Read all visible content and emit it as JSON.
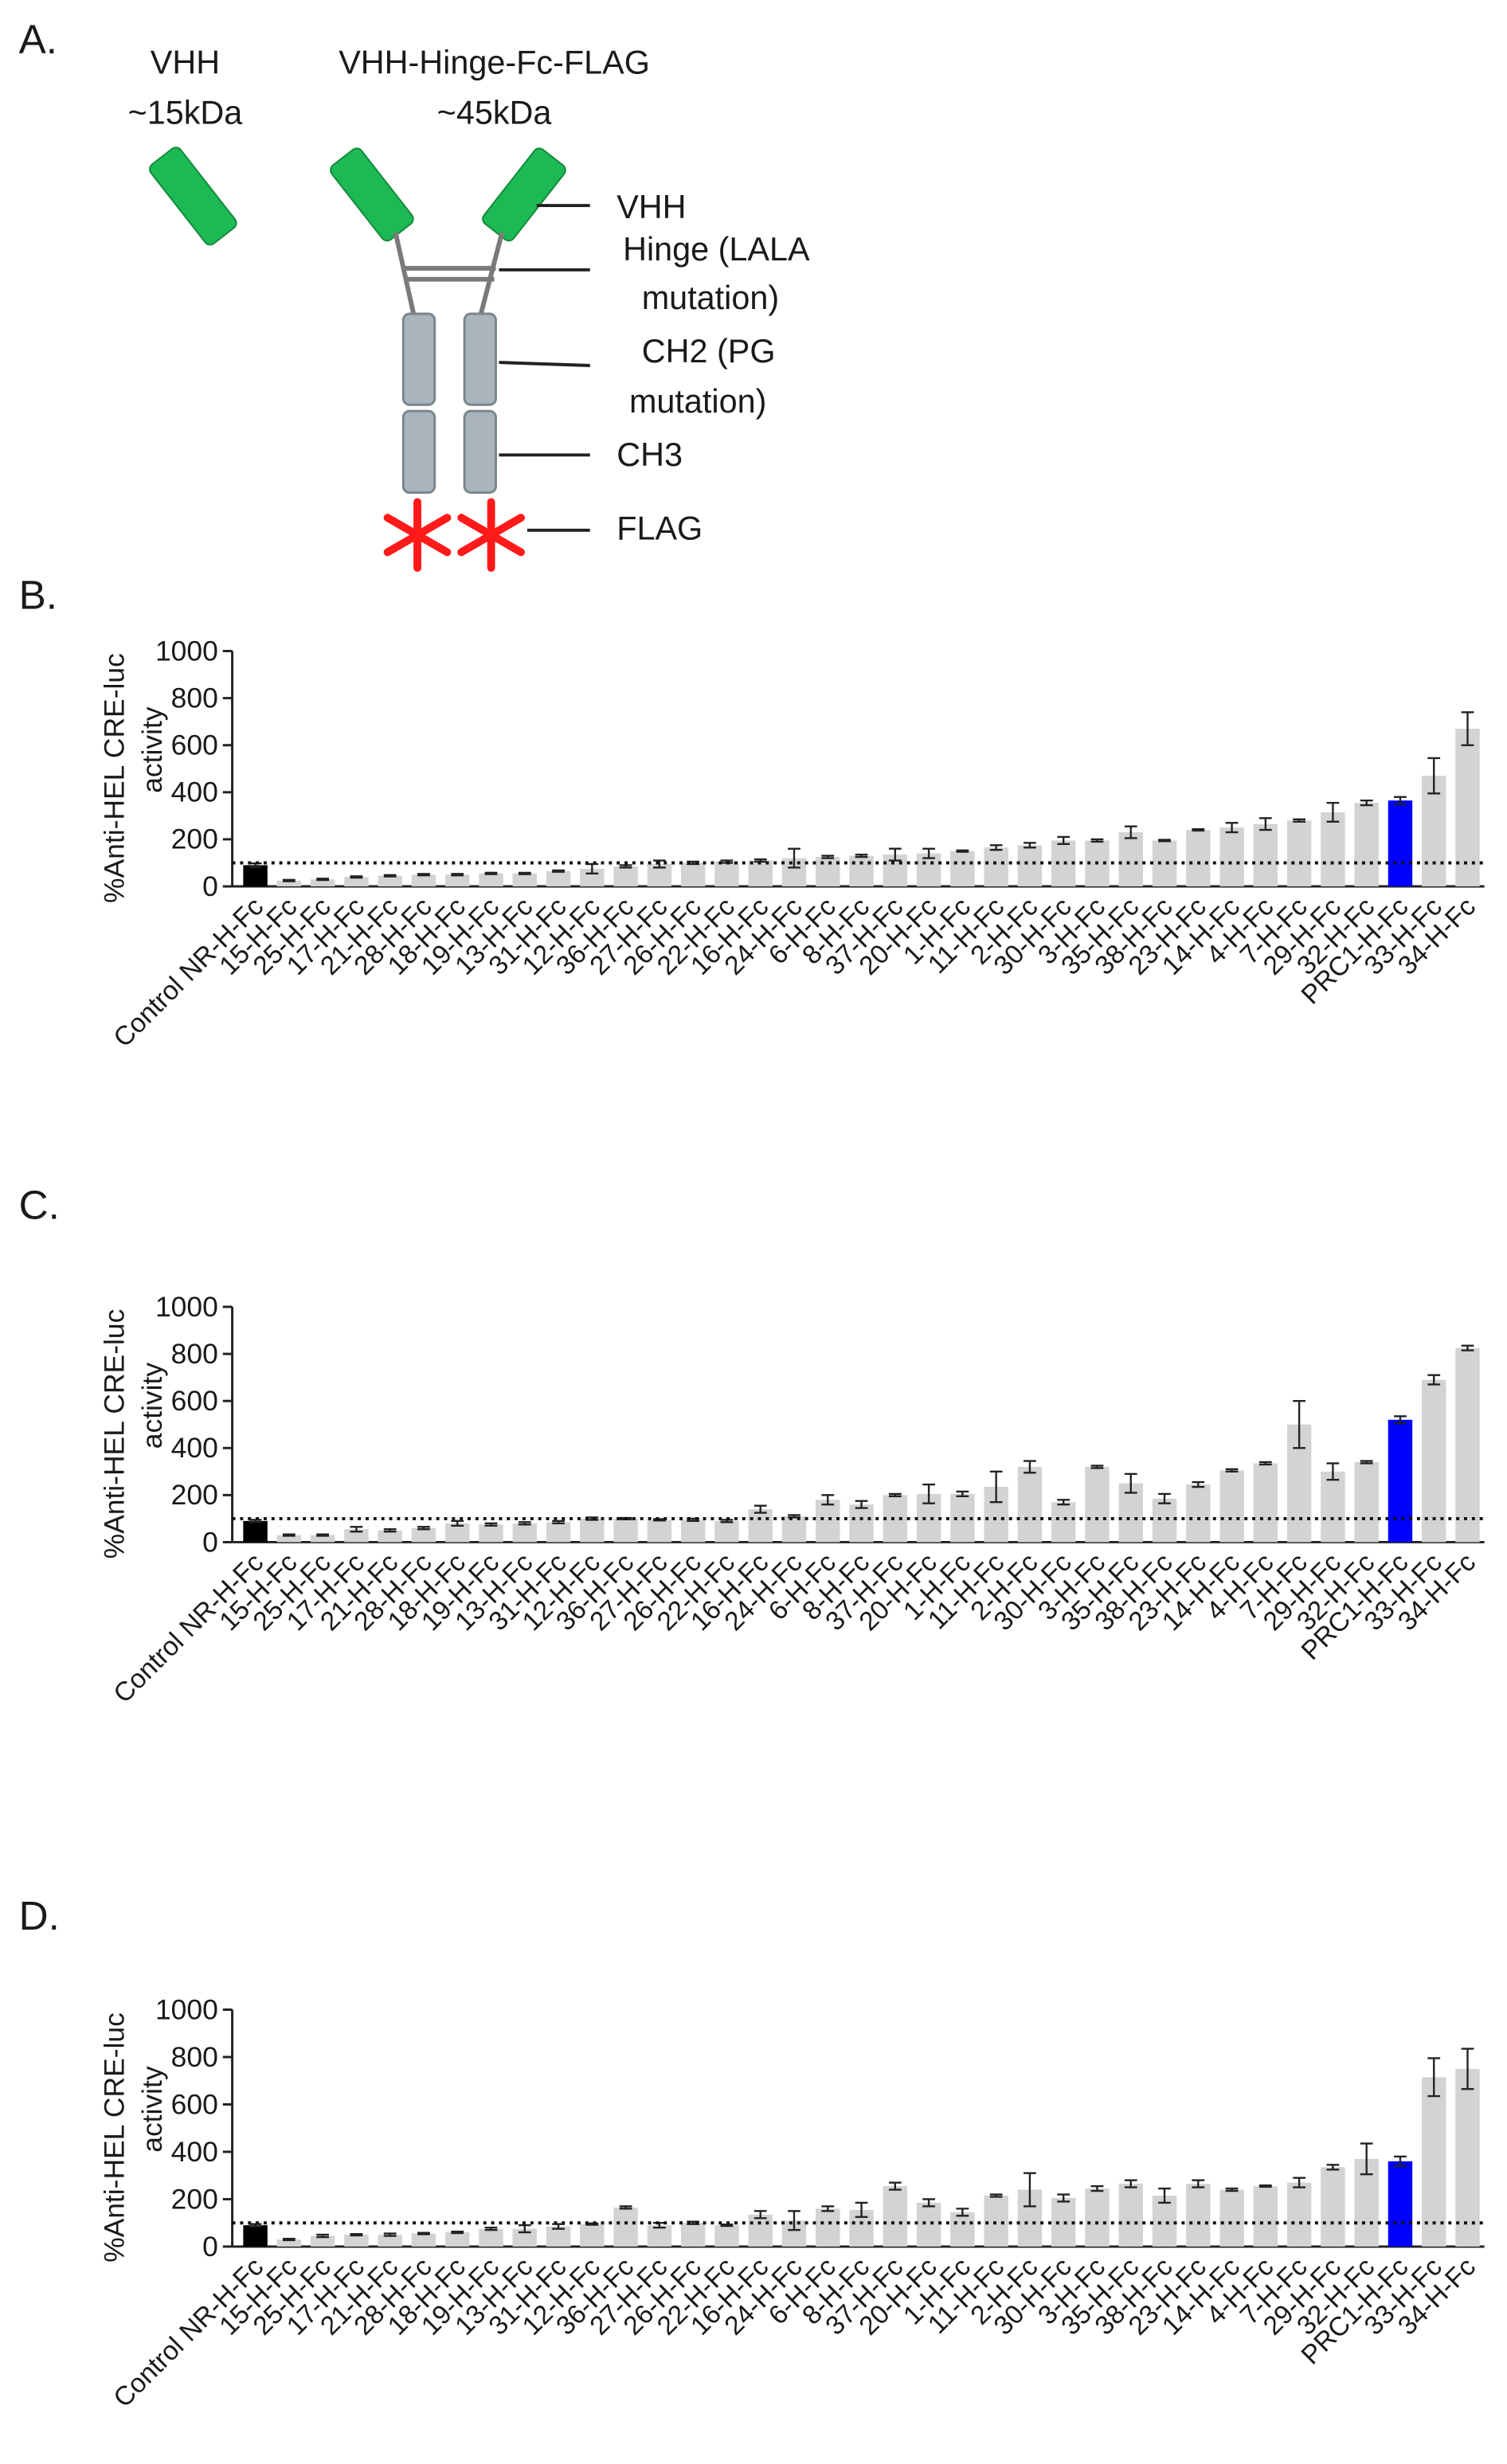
{
  "diagram": {
    "panel": "A.",
    "left_title": [
      "VHH",
      "~15kDa"
    ],
    "right_title": [
      "VHH-Hinge-Fc-FLAG",
      "~45kDa"
    ],
    "labels": {
      "vhh": "VHH",
      "hinge": [
        "Hinge (LALA",
        "mutation)"
      ],
      "ch2": [
        "CH2 (PG",
        "mutation)"
      ],
      "ch3": "CH3",
      "flag": "FLAG"
    }
  },
  "chart_data": [
    {
      "type": "bar",
      "panel": "B.",
      "y_label": [
        "%Anti-HEL CRE-luc",
        "activity"
      ],
      "categories": [
        "Control NR-H-Fc",
        "15-H-Fc",
        "25-H-Fc",
        "17-H-Fc",
        "21-H-Fc",
        "28-H-Fc",
        "18-H-Fc",
        "19-H-Fc",
        "13-H-Fc",
        "31-H-Fc",
        "12-H-Fc",
        "36-H-Fc",
        "27-H-Fc",
        "26-H-Fc",
        "22-H-Fc",
        "16-H-Fc",
        "24-H-Fc",
        "6-H-Fc",
        "8-H-Fc",
        "37-H-Fc",
        "20-H-Fc",
        "1-H-Fc",
        "11-H-Fc",
        "2-H-Fc",
        "30-H-Fc",
        "3-H-Fc",
        "35-H-Fc",
        "38-H-Fc",
        "23-H-Fc",
        "14-H-Fc",
        "4-H-Fc",
        "7-H-Fc",
        "29-H-Fc",
        "32-H-Fc",
        "PRC1-H-Fc",
        "33-H-Fc",
        "34-H-Fc"
      ],
      "values": [
        90,
        25,
        30,
        40,
        45,
        50,
        50,
        55,
        55,
        65,
        75,
        85,
        95,
        100,
        105,
        110,
        120,
        125,
        130,
        135,
        140,
        150,
        165,
        175,
        195,
        195,
        230,
        195,
        240,
        250,
        265,
        280,
        315,
        355,
        365,
        470,
        670
      ],
      "errors": [
        8,
        3,
        3,
        3,
        3,
        3,
        3,
        3,
        3,
        3,
        20,
        5,
        15,
        5,
        5,
        5,
        40,
        5,
        5,
        25,
        20,
        3,
        10,
        10,
        15,
        5,
        25,
        3,
        3,
        20,
        25,
        5,
        40,
        10,
        15,
        75,
        70
      ],
      "colors": [
        "#000000",
        "#d3d3d3",
        "#d3d3d3",
        "#d3d3d3",
        "#d3d3d3",
        "#d3d3d3",
        "#d3d3d3",
        "#d3d3d3",
        "#d3d3d3",
        "#d3d3d3",
        "#d3d3d3",
        "#d3d3d3",
        "#d3d3d3",
        "#d3d3d3",
        "#d3d3d3",
        "#d3d3d3",
        "#d3d3d3",
        "#d3d3d3",
        "#d3d3d3",
        "#d3d3d3",
        "#d3d3d3",
        "#d3d3d3",
        "#d3d3d3",
        "#d3d3d3",
        "#d3d3d3",
        "#d3d3d3",
        "#d3d3d3",
        "#d3d3d3",
        "#d3d3d3",
        "#d3d3d3",
        "#d3d3d3",
        "#d3d3d3",
        "#d3d3d3",
        "#d3d3d3",
        "#0000ff",
        "#d3d3d3",
        "#d3d3d3"
      ],
      "ylim": [
        0,
        1000
      ],
      "yticks": [
        0,
        200,
        400,
        600,
        800,
        1000
      ],
      "reference_line": 100
    },
    {
      "type": "bar",
      "panel": "C.",
      "y_label": [
        "%Anti-HEL CRE-luc",
        "activity"
      ],
      "categories": [
        "Control NR-H-Fc",
        "15-H-Fc",
        "25-H-Fc",
        "17-H-Fc",
        "21-H-Fc",
        "28-H-Fc",
        "18-H-Fc",
        "19-H-Fc",
        "13-H-Fc",
        "31-H-Fc",
        "12-H-Fc",
        "36-H-Fc",
        "27-H-Fc",
        "26-H-Fc",
        "22-H-Fc",
        "16-H-Fc",
        "24-H-Fc",
        "6-H-Fc",
        "8-H-Fc",
        "37-H-Fc",
        "20-H-Fc",
        "1-H-Fc",
        "11-H-Fc",
        "2-H-Fc",
        "30-H-Fc",
        "3-H-Fc",
        "35-H-Fc",
        "38-H-Fc",
        "23-H-Fc",
        "14-H-Fc",
        "4-H-Fc",
        "7-H-Fc",
        "29-H-Fc",
        "32-H-Fc",
        "PRC1-H-Fc",
        "33-H-Fc",
        "34-H-Fc"
      ],
      "values": [
        90,
        30,
        30,
        55,
        50,
        60,
        80,
        75,
        80,
        85,
        100,
        100,
        95,
        95,
        90,
        140,
        110,
        180,
        160,
        200,
        205,
        205,
        235,
        320,
        170,
        320,
        250,
        185,
        245,
        305,
        335,
        500,
        300,
        340,
        520,
        690,
        825
      ],
      "errors": [
        5,
        3,
        3,
        10,
        5,
        5,
        10,
        5,
        5,
        5,
        5,
        3,
        3,
        5,
        5,
        15,
        5,
        20,
        15,
        5,
        40,
        10,
        65,
        25,
        10,
        5,
        40,
        20,
        10,
        5,
        5,
        100,
        35,
        5,
        15,
        20,
        10
      ],
      "colors": [
        "#000000",
        "#d3d3d3",
        "#d3d3d3",
        "#d3d3d3",
        "#d3d3d3",
        "#d3d3d3",
        "#d3d3d3",
        "#d3d3d3",
        "#d3d3d3",
        "#d3d3d3",
        "#d3d3d3",
        "#d3d3d3",
        "#d3d3d3",
        "#d3d3d3",
        "#d3d3d3",
        "#d3d3d3",
        "#d3d3d3",
        "#d3d3d3",
        "#d3d3d3",
        "#d3d3d3",
        "#d3d3d3",
        "#d3d3d3",
        "#d3d3d3",
        "#d3d3d3",
        "#d3d3d3",
        "#d3d3d3",
        "#d3d3d3",
        "#d3d3d3",
        "#d3d3d3",
        "#d3d3d3",
        "#d3d3d3",
        "#d3d3d3",
        "#d3d3d3",
        "#d3d3d3",
        "#0000ff",
        "#d3d3d3",
        "#d3d3d3"
      ],
      "ylim": [
        0,
        1000
      ],
      "yticks": [
        0,
        200,
        400,
        600,
        800,
        1000
      ],
      "reference_line": 100
    },
    {
      "type": "bar",
      "panel": "D.",
      "y_label": [
        "%Anti-HEL CRE-luc",
        "activity"
      ],
      "categories": [
        "Control NR-H-Fc",
        "15-H-Fc",
        "25-H-Fc",
        "17-H-Fc",
        "21-H-Fc",
        "28-H-Fc",
        "18-H-Fc",
        "19-H-Fc",
        "13-H-Fc",
        "31-H-Fc",
        "12-H-Fc",
        "36-H-Fc",
        "27-H-Fc",
        "26-H-Fc",
        "22-H-Fc",
        "16-H-Fc",
        "24-H-Fc",
        "6-H-Fc",
        "8-H-Fc",
        "37-H-Fc",
        "20-H-Fc",
        "1-H-Fc",
        "11-H-Fc",
        "2-H-Fc",
        "30-H-Fc",
        "3-H-Fc",
        "35-H-Fc",
        "38-H-Fc",
        "23-H-Fc",
        "14-H-Fc",
        "4-H-Fc",
        "7-H-Fc",
        "29-H-Fc",
        "32-H-Fc",
        "PRC1-H-Fc",
        "33-H-Fc",
        "34-H-Fc"
      ],
      "values": [
        90,
        30,
        45,
        50,
        50,
        55,
        60,
        75,
        75,
        85,
        95,
        165,
        90,
        100,
        90,
        135,
        110,
        160,
        155,
        255,
        185,
        145,
        215,
        240,
        205,
        245,
        265,
        215,
        265,
        240,
        255,
        270,
        335,
        370,
        360,
        715,
        750
      ],
      "errors": [
        5,
        3,
        5,
        3,
        5,
        3,
        3,
        5,
        15,
        10,
        3,
        5,
        10,
        5,
        3,
        15,
        40,
        10,
        30,
        15,
        15,
        15,
        5,
        70,
        15,
        10,
        15,
        30,
        15,
        5,
        3,
        20,
        10,
        65,
        20,
        80,
        85
      ],
      "colors": [
        "#000000",
        "#d3d3d3",
        "#d3d3d3",
        "#d3d3d3",
        "#d3d3d3",
        "#d3d3d3",
        "#d3d3d3",
        "#d3d3d3",
        "#d3d3d3",
        "#d3d3d3",
        "#d3d3d3",
        "#d3d3d3",
        "#d3d3d3",
        "#d3d3d3",
        "#d3d3d3",
        "#d3d3d3",
        "#d3d3d3",
        "#d3d3d3",
        "#d3d3d3",
        "#d3d3d3",
        "#d3d3d3",
        "#d3d3d3",
        "#d3d3d3",
        "#d3d3d3",
        "#d3d3d3",
        "#d3d3d3",
        "#d3d3d3",
        "#d3d3d3",
        "#d3d3d3",
        "#d3d3d3",
        "#d3d3d3",
        "#d3d3d3",
        "#d3d3d3",
        "#d3d3d3",
        "#0000ff",
        "#d3d3d3",
        "#d3d3d3"
      ],
      "ylim": [
        0,
        1000
      ],
      "yticks": [
        0,
        200,
        400,
        600,
        800,
        1000
      ],
      "reference_line": 100
    }
  ]
}
